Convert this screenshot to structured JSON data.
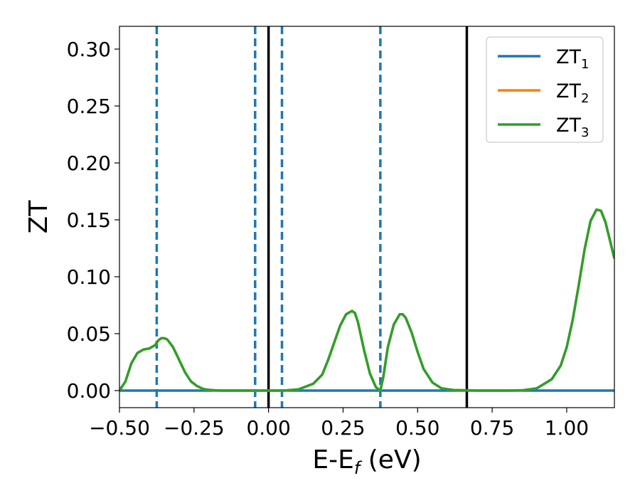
{
  "chart_data": {
    "type": "line",
    "xlabel_main": "E-E",
    "xlabel_sub": "f",
    "xlabel_unit": " (eV)",
    "ylabel": "ZT",
    "xlim": [
      -0.5,
      1.16
    ],
    "ylim": [
      -0.015,
      0.32
    ],
    "xticks": [
      -0.5,
      -0.25,
      0.0,
      0.25,
      0.5,
      0.75,
      1.0
    ],
    "xtick_labels": [
      "−0.50",
      "−0.25",
      "0.00",
      "0.25",
      "0.50",
      "0.75",
      "1.00"
    ],
    "yticks": [
      0.0,
      0.05,
      0.1,
      0.15,
      0.2,
      0.25,
      0.3
    ],
    "ytick_labels": [
      "0.00",
      "0.05",
      "0.10",
      "0.15",
      "0.20",
      "0.25",
      "0.30"
    ],
    "grid": false,
    "legend_position": "top-right",
    "series": [
      {
        "label_main": "ZT",
        "label_sub": "1",
        "color": "#1f77b4",
        "x": [
          -0.5,
          1.16
        ],
        "y": [
          0.0,
          0.0
        ]
      },
      {
        "label_main": "ZT",
        "label_sub": "2",
        "color": "#ff7f0e",
        "x": [
          -0.5,
          -0.48,
          -0.46,
          -0.44,
          -0.42,
          -0.4,
          -0.38,
          -0.37,
          -0.36,
          -0.35,
          -0.34,
          -0.32,
          -0.3,
          -0.28,
          -0.26,
          -0.24,
          -0.22,
          -0.2,
          -0.18,
          -0.15,
          -0.1,
          -0.05,
          0.0,
          0.05,
          0.1,
          0.15,
          0.18,
          0.2,
          0.22,
          0.24,
          0.26,
          0.28,
          0.29,
          0.3,
          0.31,
          0.32,
          0.34,
          0.36,
          0.375,
          0.385,
          0.4,
          0.42,
          0.44,
          0.45,
          0.46,
          0.48,
          0.5,
          0.52,
          0.55,
          0.58,
          0.62,
          0.7,
          0.8,
          0.85,
          0.9,
          0.95,
          0.98,
          1.0,
          1.02,
          1.04,
          1.06,
          1.08,
          1.1,
          1.115,
          1.13,
          1.145,
          1.16
        ],
        "y": [
          0.0,
          0.008,
          0.024,
          0.033,
          0.036,
          0.037,
          0.04,
          0.044,
          0.046,
          0.046,
          0.045,
          0.038,
          0.027,
          0.016,
          0.008,
          0.004,
          0.0015,
          0.0006,
          0.0002,
          0.0,
          0.0,
          0.0,
          0.0,
          0.0,
          0.001,
          0.006,
          0.014,
          0.027,
          0.042,
          0.057,
          0.067,
          0.07,
          0.068,
          0.06,
          0.048,
          0.036,
          0.015,
          0.003,
          0.0,
          0.012,
          0.038,
          0.058,
          0.067,
          0.067,
          0.064,
          0.051,
          0.034,
          0.019,
          0.007,
          0.002,
          0.0005,
          0.0,
          0.0,
          0.0002,
          0.002,
          0.01,
          0.022,
          0.038,
          0.062,
          0.092,
          0.124,
          0.149,
          0.159,
          0.158,
          0.148,
          0.132,
          0.116
        ]
      },
      {
        "label_main": "ZT",
        "label_sub": "3",
        "color": "#2ca02c",
        "x": [
          -0.5,
          -0.48,
          -0.46,
          -0.44,
          -0.42,
          -0.4,
          -0.38,
          -0.37,
          -0.36,
          -0.35,
          -0.34,
          -0.32,
          -0.3,
          -0.28,
          -0.26,
          -0.24,
          -0.22,
          -0.2,
          -0.18,
          -0.15,
          -0.1,
          -0.05,
          0.0,
          0.05,
          0.1,
          0.15,
          0.18,
          0.2,
          0.22,
          0.24,
          0.26,
          0.28,
          0.29,
          0.3,
          0.31,
          0.32,
          0.34,
          0.36,
          0.375,
          0.385,
          0.4,
          0.42,
          0.44,
          0.45,
          0.46,
          0.48,
          0.5,
          0.52,
          0.55,
          0.58,
          0.62,
          0.7,
          0.8,
          0.85,
          0.9,
          0.95,
          0.98,
          1.0,
          1.02,
          1.04,
          1.06,
          1.08,
          1.1,
          1.115,
          1.13,
          1.145,
          1.16
        ],
        "y": [
          0.0,
          0.008,
          0.024,
          0.033,
          0.036,
          0.037,
          0.04,
          0.044,
          0.046,
          0.046,
          0.045,
          0.038,
          0.027,
          0.016,
          0.008,
          0.004,
          0.0015,
          0.0006,
          0.0002,
          0.0,
          0.0,
          0.0,
          0.0,
          0.0,
          0.001,
          0.006,
          0.014,
          0.027,
          0.042,
          0.057,
          0.067,
          0.07,
          0.068,
          0.06,
          0.048,
          0.036,
          0.015,
          0.003,
          0.0,
          0.012,
          0.038,
          0.058,
          0.067,
          0.067,
          0.064,
          0.051,
          0.034,
          0.019,
          0.007,
          0.002,
          0.0005,
          0.0,
          0.0,
          0.0002,
          0.002,
          0.01,
          0.022,
          0.038,
          0.062,
          0.092,
          0.124,
          0.149,
          0.159,
          0.158,
          0.148,
          0.132,
          0.116
        ]
      }
    ],
    "vlines_dashed": {
      "color": "#1f77b4",
      "x": [
        -0.375,
        -0.045,
        0.045,
        0.375
      ]
    },
    "vlines_solid": {
      "color": "#000000",
      "x": [
        0.0,
        0.665
      ]
    }
  }
}
